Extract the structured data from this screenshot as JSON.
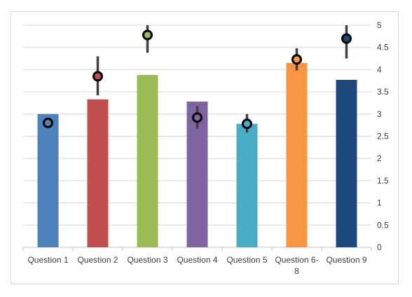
{
  "chart_data": {
    "type": "bar",
    "categories": [
      "Question 1",
      "Question 2",
      "Question 3",
      "Question 4",
      "Question 5",
      "Question 6-8",
      "Question 9"
    ],
    "category_lines": [
      [
        "Question 1"
      ],
      [
        "Question 2"
      ],
      [
        "Question 3"
      ],
      [
        "Question 4"
      ],
      [
        "Question 5"
      ],
      [
        "Question 6-",
        "8"
      ],
      [
        "Question 9"
      ]
    ],
    "bar_values": [
      3.0,
      3.33,
      3.88,
      3.28,
      2.78,
      4.15,
      3.77
    ],
    "markers": {
      "values": [
        2.8,
        3.85,
        4.78,
        2.92,
        2.78,
        4.23,
        4.7
      ],
      "error_low": [
        2.72,
        3.42,
        4.38,
        2.67,
        2.58,
        3.98,
        4.25
      ],
      "error_high": [
        2.88,
        4.3,
        5.0,
        3.18,
        3.0,
        4.48,
        5.0
      ]
    },
    "colors": [
      "#4f81bd",
      "#c0504d",
      "#9bbb59",
      "#8064a2",
      "#4bacc6",
      "#f79646",
      "#1f497d"
    ],
    "y_axis_position": "right",
    "ylim": [
      0,
      5
    ],
    "yticks": [
      "0",
      "0.5",
      "1",
      "1.5",
      "2",
      "2.5",
      "3",
      "3.5",
      "4",
      "4.5",
      "5"
    ],
    "grid": true,
    "title": "",
    "xlabel": "",
    "ylabel": ""
  }
}
